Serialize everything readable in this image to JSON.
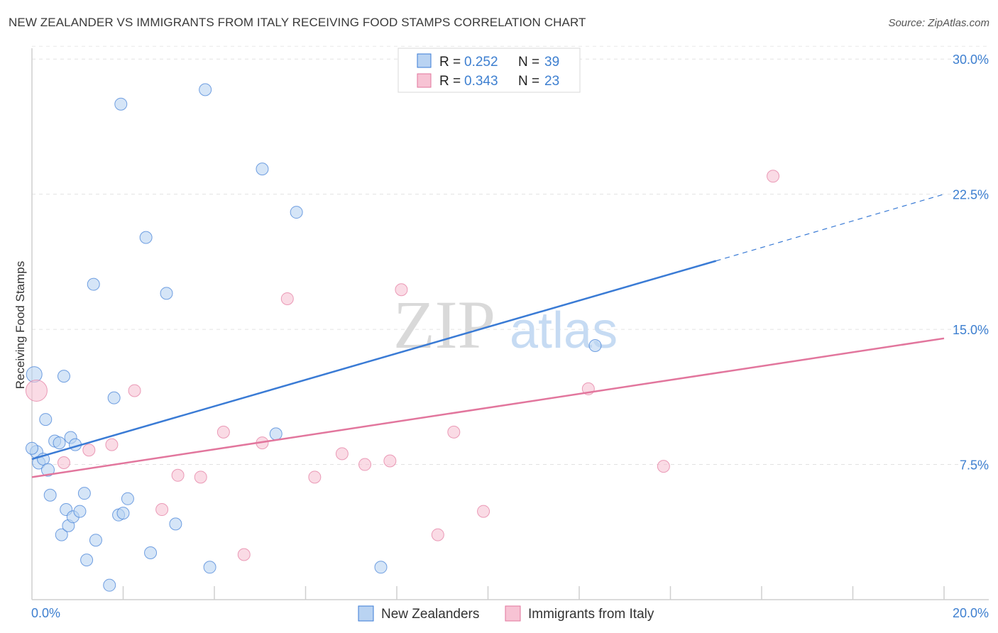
{
  "title": "NEW ZEALANDER VS IMMIGRANTS FROM ITALY RECEIVING FOOD STAMPS CORRELATION CHART",
  "source": "Source: ZipAtlas.com",
  "watermark": {
    "part1": "ZIP",
    "part2": "atlas"
  },
  "chart_data": {
    "type": "scatter",
    "xlabel": "",
    "ylabel": "Receiving Food Stamps",
    "xlim": [
      0,
      20
    ],
    "ylim": [
      0,
      30.6
    ],
    "x_tick_labels": {
      "min": "0.0%",
      "max": "20.0%"
    },
    "y_ticks": [
      7.5,
      15.0,
      22.5,
      30.0
    ],
    "y_tick_labels": [
      "7.5%",
      "15.0%",
      "22.5%",
      "30.0%"
    ],
    "grid": "horizontal dashed",
    "legend_position": "bottom",
    "stats": [
      {
        "r_label": "R =",
        "r": "0.252",
        "n_label": "N =",
        "n": "39"
      },
      {
        "r_label": "R =",
        "r": "0.343",
        "n_label": "N =",
        "n": "23"
      }
    ],
    "colors": {
      "blue": "#3a7bd5",
      "blue_fill": "#b9d3f2",
      "pink": "#e2769d",
      "pink_fill": "#f7c3d4"
    },
    "series": [
      {
        "name": "New Zealanders",
        "color": "#3a7bd5",
        "fill": "#b9d3f2",
        "trend": {
          "x0": 0,
          "y0": 7.8,
          "x1": 15.0,
          "y1": 18.8,
          "dash_to_x": 20.0,
          "dash_to_y": 22.5
        },
        "points": [
          [
            0.05,
            12.5
          ],
          [
            0.1,
            8.2
          ],
          [
            0.15,
            7.6
          ],
          [
            0.25,
            7.8
          ],
          [
            0.3,
            10.0
          ],
          [
            0.35,
            7.2
          ],
          [
            0.4,
            5.8
          ],
          [
            0.5,
            8.8
          ],
          [
            0.6,
            8.7
          ],
          [
            0.65,
            3.6
          ],
          [
            0.7,
            12.4
          ],
          [
            0.75,
            5.0
          ],
          [
            0.8,
            4.1
          ],
          [
            0.85,
            9.0
          ],
          [
            0.9,
            4.6
          ],
          [
            0.95,
            8.6
          ],
          [
            1.05,
            4.9
          ],
          [
            1.15,
            5.9
          ],
          [
            1.2,
            2.2
          ],
          [
            1.35,
            17.5
          ],
          [
            1.4,
            3.3
          ],
          [
            1.7,
            0.8
          ],
          [
            1.8,
            11.2
          ],
          [
            1.9,
            4.7
          ],
          [
            1.95,
            27.5
          ],
          [
            2.0,
            4.8
          ],
          [
            2.1,
            5.6
          ],
          [
            2.5,
            20.1
          ],
          [
            2.6,
            2.6
          ],
          [
            2.95,
            17.0
          ],
          [
            3.15,
            4.2
          ],
          [
            3.8,
            28.3
          ],
          [
            3.9,
            1.8
          ],
          [
            5.05,
            23.9
          ],
          [
            5.35,
            9.2
          ],
          [
            5.8,
            21.5
          ],
          [
            7.65,
            1.8
          ],
          [
            12.35,
            14.1
          ],
          [
            0.0,
            8.4
          ]
        ],
        "sizes": [
          22,
          18,
          18,
          17,
          17,
          18,
          17,
          17,
          17,
          17,
          17,
          17,
          17,
          17,
          17,
          17,
          17,
          17,
          17,
          17,
          17,
          17,
          17,
          17,
          17,
          17,
          17,
          17,
          17,
          17,
          17,
          17,
          17,
          17,
          17,
          17,
          17,
          17,
          17
        ]
      },
      {
        "name": "Immigrants from Italy",
        "color": "#e2769d",
        "fill": "#f7c3d4",
        "trend": {
          "x0": 0,
          "y0": 6.8,
          "x1": 20.0,
          "y1": 14.5
        },
        "points": [
          [
            0.1,
            11.6
          ],
          [
            0.7,
            7.6
          ],
          [
            1.25,
            8.3
          ],
          [
            1.75,
            8.6
          ],
          [
            2.25,
            11.6
          ],
          [
            2.85,
            5.0
          ],
          [
            3.2,
            6.9
          ],
          [
            3.7,
            6.8
          ],
          [
            4.2,
            9.3
          ],
          [
            4.65,
            2.5
          ],
          [
            5.05,
            8.7
          ],
          [
            5.6,
            16.7
          ],
          [
            6.2,
            6.8
          ],
          [
            6.8,
            8.1
          ],
          [
            7.3,
            7.5
          ],
          [
            7.85,
            7.7
          ],
          [
            8.1,
            17.2
          ],
          [
            8.9,
            3.6
          ],
          [
            9.25,
            9.3
          ],
          [
            9.9,
            4.9
          ],
          [
            12.2,
            11.7
          ],
          [
            13.85,
            7.4
          ],
          [
            16.25,
            23.5
          ]
        ],
        "sizes": [
          30,
          17,
          17,
          17,
          17,
          17,
          17,
          17,
          17,
          17,
          17,
          17,
          17,
          17,
          17,
          17,
          17,
          17,
          17,
          17,
          17,
          17,
          17
        ]
      }
    ]
  }
}
